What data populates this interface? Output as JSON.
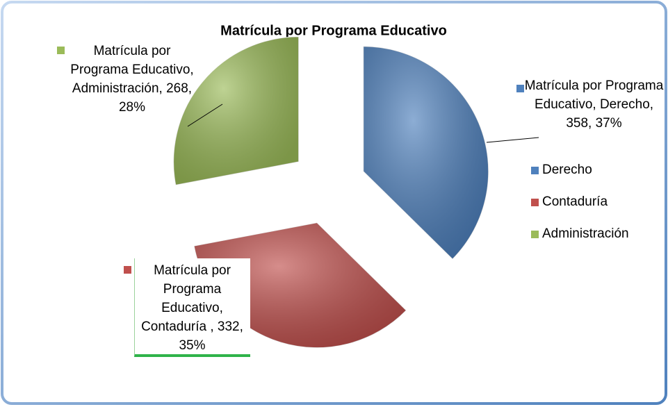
{
  "chart_data": {
    "type": "pie",
    "title": "Matrícula por Programa Educativo",
    "categories": [
      "Derecho",
      "Contaduría",
      "Administración"
    ],
    "values": [
      358,
      332,
      268
    ],
    "value_labels": [
      "Matrícula por Programa Educativo, Derecho, 358, 37%",
      "Matrícula por Programa Educativo, Contaduría , 332, 35%",
      "Matrícula por Programa Educativo, Administración, 268, 28%"
    ],
    "colors": [
      "#4f81bd",
      "#c0504d",
      "#9bbb59"
    ],
    "legend": "right"
  }
}
